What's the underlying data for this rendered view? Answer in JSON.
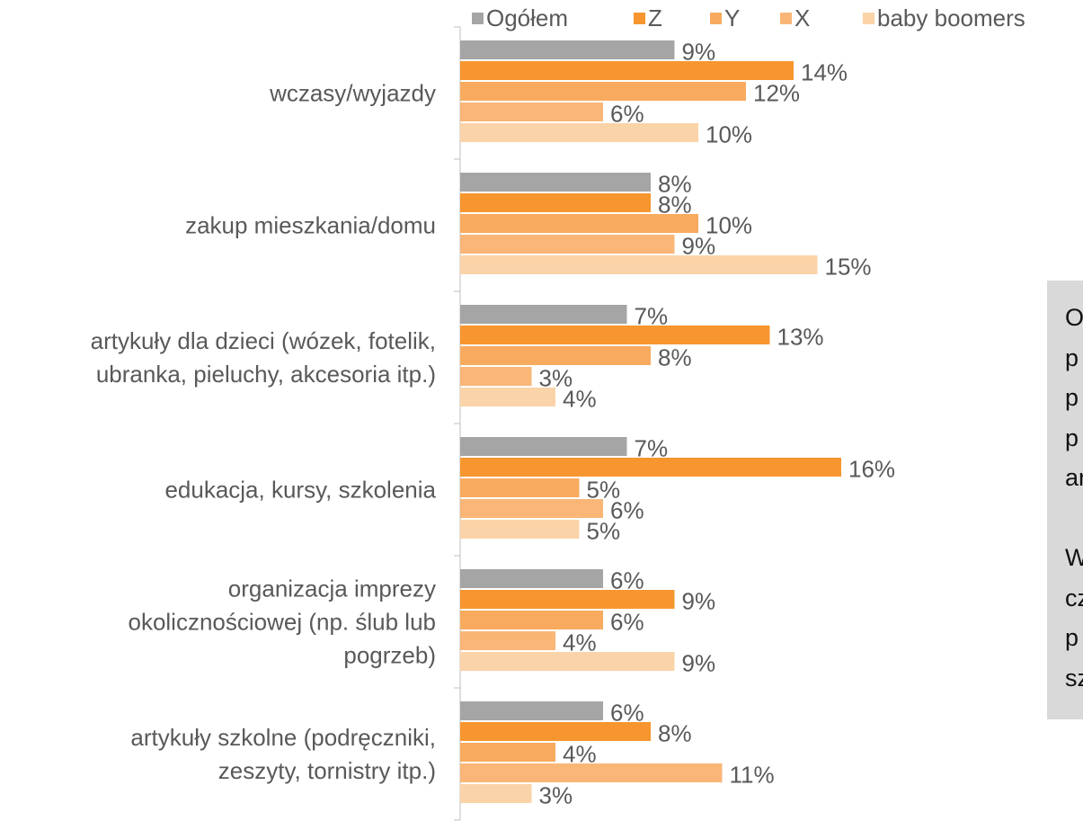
{
  "chart_data": {
    "type": "barh",
    "categories": [
      "wczasy/wyjazdy",
      "zakup mieszkania/domu",
      "artykuły dla dzieci (wózek, fotelik,\nubranka, pieluchy, akcesoria itp.)",
      "edukacja, kursy, szkolenia",
      "organizacja imprezy\nokolicznościowej (np. ślub lub\npogrzeb)",
      "artykuły szkolne (podręczniki,\nzeszyty, tornistry itp.)"
    ],
    "series": [
      {
        "name": "Ogółem",
        "color": "#a5a5a5",
        "values": [
          9,
          8,
          7,
          7,
          6,
          6
        ]
      },
      {
        "name": "Z",
        "color": "#f7962e",
        "values": [
          14,
          8,
          13,
          16,
          9,
          8
        ]
      },
      {
        "name": "Y",
        "color": "#f8ab5f",
        "values": [
          12,
          10,
          8,
          5,
          6,
          4
        ]
      },
      {
        "name": "X",
        "color": "#f9b677",
        "values": [
          6,
          9,
          3,
          6,
          4,
          11
        ]
      },
      {
        "name": "baby boomers",
        "color": "#fbd3a8",
        "values": [
          10,
          15,
          4,
          5,
          9,
          3
        ]
      }
    ],
    "value_labels": [
      [
        "9%",
        "8%",
        "7%",
        "7%",
        "6%",
        "6%"
      ],
      [
        "14%",
        "8%",
        "13%",
        "16%",
        "9%",
        "8%"
      ],
      [
        "12%",
        "10%",
        "8%",
        "5%",
        "6%",
        "4%"
      ],
      [
        "6%",
        "9%",
        "3%",
        "6%",
        "4%",
        "11%"
      ],
      [
        "10%",
        "15%",
        "4%",
        "5%",
        "9%",
        "3%"
      ]
    ],
    "legend": "top",
    "annotation": [
      "O",
      "p",
      "p",
      "p",
      "ar",
      "",
      "W",
      "cz",
      "p",
      "sz"
    ]
  }
}
